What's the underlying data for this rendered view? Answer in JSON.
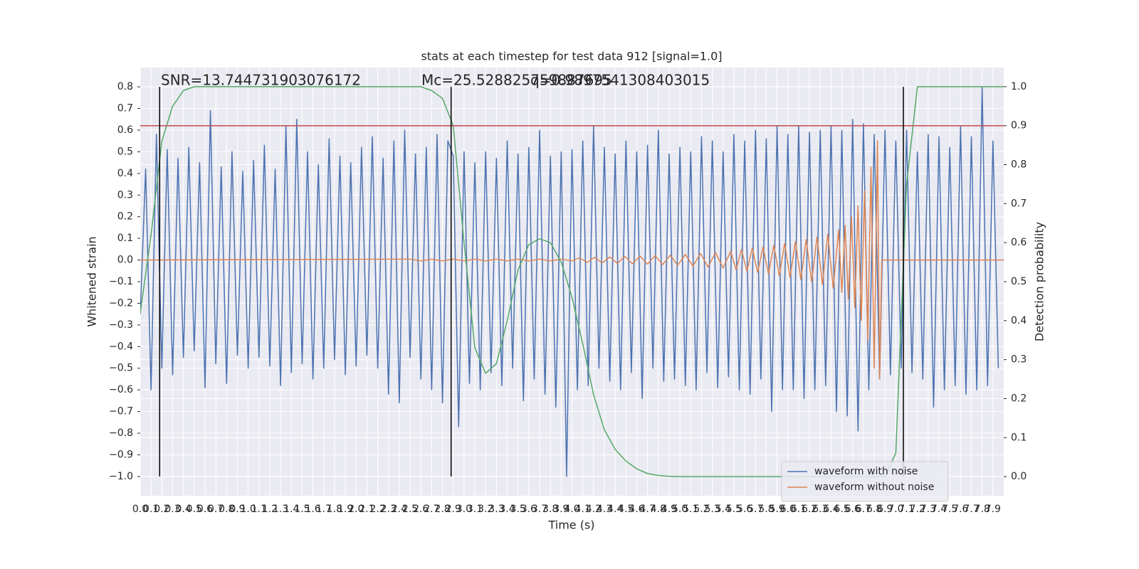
{
  "chart_data": {
    "type": "line",
    "title": "stats at each timestep for test data 912 [signal=1.0]",
    "xlabel": "Time (s)",
    "ylabel": "Whitened strain",
    "y2label": "Detection probability",
    "annotations": [
      "SNR=13.744731903076172",
      "Mc=25.528825759887695",
      "q=0.9897541308403015"
    ],
    "xlim": [
      0,
      8
    ],
    "ylim": [
      -1.089,
      0.889
    ],
    "y2lim": [
      -0.049,
      1.049
    ],
    "grid": true,
    "legend": "lower right",
    "xticks": [
      {
        "value": 0,
        "label": "0.0"
      },
      0.1,
      0.2,
      0.3,
      0.4,
      0.5,
      0.6,
      0.7,
      0.8,
      0.9,
      {
        "value": 1,
        "label": "1.0"
      },
      1.1,
      1.2,
      1.3,
      1.4,
      1.5,
      1.6,
      1.7,
      1.8,
      1.9,
      {
        "value": 2,
        "label": "2.0"
      },
      2.1,
      2.2,
      2.3,
      2.4,
      2.5,
      2.6,
      2.7,
      2.8,
      2.9,
      {
        "value": 3,
        "label": "3.0"
      },
      3.1,
      3.2,
      3.3,
      3.4,
      3.5,
      3.6,
      3.7,
      3.8,
      3.9,
      {
        "value": 4,
        "label": "4.0"
      },
      4.1,
      4.2,
      4.3,
      4.4,
      4.5,
      4.6,
      4.7,
      4.8,
      4.9,
      {
        "value": 5,
        "label": "5.0"
      },
      5.1,
      5.2,
      5.3,
      5.4,
      5.5,
      5.6,
      5.7,
      5.8,
      5.9,
      {
        "value": 6,
        "label": "6.0"
      },
      6.1,
      6.2,
      6.3,
      6.4,
      6.5,
      6.6,
      6.7,
      6.8,
      6.9,
      {
        "value": 7,
        "label": "7.0"
      },
      7.1,
      7.2,
      7.3,
      7.4,
      7.5,
      7.6,
      7.7,
      7.8,
      7.9
    ],
    "yticks": [
      0.8,
      0.7,
      0.6,
      0.5,
      0.4,
      0.3,
      0.2,
      0.1,
      {
        "value": 0,
        "label": "0.0"
      },
      {
        "value": -0.1,
        "label": "−0.1"
      },
      {
        "value": -0.2,
        "label": "−0.2"
      },
      {
        "value": -0.3,
        "label": "−0.3"
      },
      {
        "value": -0.4,
        "label": "−0.4"
      },
      {
        "value": -0.5,
        "label": "−0.5"
      },
      {
        "value": -0.6,
        "label": "−0.6"
      },
      {
        "value": -0.7,
        "label": "−0.7"
      },
      {
        "value": -0.8,
        "label": "−0.8"
      },
      {
        "value": -0.9,
        "label": "−0.9"
      },
      {
        "value": -1,
        "label": "−1.0"
      }
    ],
    "y2ticks": [
      {
        "value": 0,
        "label": "0.0"
      },
      0.1,
      0.2,
      0.3,
      0.4,
      0.5,
      0.6,
      0.7,
      0.8,
      0.9,
      {
        "value": 1,
        "label": "1.0"
      }
    ],
    "hline": {
      "value": 0.9,
      "axis": "y2",
      "color": "#c44e52"
    },
    "vlines": {
      "x": [
        0.18,
        2.88,
        7.07
      ],
      "ymin": -1,
      "ymax": 0.8,
      "color": "#000000"
    },
    "series": [
      {
        "name": "waveform with noise",
        "color": "#4c72b0",
        "x": [
          0,
          0.05,
          0.1,
          0.15,
          0.2,
          0.25,
          0.3,
          0.35,
          0.4,
          0.45,
          0.5,
          0.55,
          0.6,
          0.65,
          0.7,
          0.75,
          0.8,
          0.85,
          0.9,
          0.95,
          1,
          1.05,
          1.1,
          1.15,
          1.2,
          1.25,
          1.3,
          1.35,
          1.4,
          1.45,
          1.5,
          1.55,
          1.6,
          1.65,
          1.7,
          1.75,
          1.8,
          1.85,
          1.9,
          1.95,
          2,
          2.05,
          2.1,
          2.15,
          2.2,
          2.25,
          2.3,
          2.35,
          2.4,
          2.45,
          2.5,
          2.55,
          2.6,
          2.65,
          2.7,
          2.75,
          2.8,
          2.85,
          2.9,
          2.95,
          3,
          3.05,
          3.1,
          3.15,
          3.2,
          3.25,
          3.3,
          3.35,
          3.4,
          3.45,
          3.5,
          3.55,
          3.6,
          3.65,
          3.7,
          3.75,
          3.8,
          3.85,
          3.9,
          3.95,
          4,
          4.05,
          4.1,
          4.15,
          4.2,
          4.25,
          4.3,
          4.35,
          4.4,
          4.45,
          4.5,
          4.55,
          4.6,
          4.65,
          4.7,
          4.75,
          4.8,
          4.85,
          4.9,
          4.95,
          5,
          5.05,
          5.1,
          5.15,
          5.2,
          5.25,
          5.3,
          5.35,
          5.4,
          5.45,
          5.5,
          5.55,
          5.6,
          5.65,
          5.7,
          5.75,
          5.8,
          5.85,
          5.9,
          5.95,
          6,
          6.05,
          6.1,
          6.15,
          6.2,
          6.25,
          6.3,
          6.35,
          6.4,
          6.45,
          6.5,
          6.55,
          6.6,
          6.65,
          6.7,
          6.75,
          6.8,
          6.85,
          6.9,
          6.95,
          7,
          7.05,
          7.1,
          7.15,
          7.2,
          7.25,
          7.3,
          7.35,
          7.4,
          7.45,
          7.5,
          7.55,
          7.6,
          7.65,
          7.7,
          7.75,
          7.8,
          7.85,
          7.9,
          7.95
        ],
        "values": [
          -0.25,
          0.42,
          -0.6,
          0.58,
          -0.5,
          0.51,
          -0.53,
          0.47,
          -0.45,
          0.52,
          -0.42,
          0.45,
          -0.59,
          0.69,
          -0.48,
          0.43,
          -0.57,
          0.5,
          -0.44,
          0.41,
          -0.5,
          0.46,
          -0.45,
          0.53,
          -0.49,
          0.42,
          -0.58,
          0.62,
          -0.52,
          0.65,
          -0.48,
          0.5,
          -0.55,
          0.44,
          -0.5,
          0.56,
          -0.46,
          0.48,
          -0.53,
          0.45,
          -0.49,
          0.52,
          -0.44,
          0.57,
          -0.5,
          0.47,
          -0.62,
          0.55,
          -0.66,
          0.6,
          -0.45,
          0.49,
          -0.55,
          0.52,
          -0.6,
          0.58,
          -0.66,
          0.55,
          0.48,
          -0.77,
          0.5,
          -0.57,
          0.45,
          -0.6,
          0.5,
          -0.52,
          0.47,
          -0.58,
          0.55,
          -0.5,
          0.49,
          -0.65,
          0.52,
          -0.55,
          0.6,
          -0.62,
          0.48,
          -0.68,
          0.5,
          -1.0,
          0.51,
          -0.6,
          0.55,
          -0.58,
          0.62,
          -0.5,
          0.52,
          -0.56,
          0.49,
          -0.6,
          0.55,
          -0.52,
          0.5,
          -0.64,
          0.53,
          -0.5,
          0.6,
          -0.56,
          0.49,
          -0.55,
          0.52,
          -0.58,
          0.5,
          -0.6,
          0.57,
          -0.52,
          0.55,
          -0.59,
          0.5,
          -0.54,
          0.58,
          -0.6,
          0.55,
          -0.62,
          0.6,
          -0.55,
          0.56,
          -0.7,
          0.62,
          -0.6,
          0.58,
          -0.6,
          0.62,
          -0.64,
          0.59,
          -0.6,
          0.6,
          -0.58,
          0.62,
          -0.7,
          0.6,
          -0.72,
          0.65,
          -0.79,
          0.63,
          -0.6,
          0.58,
          -0.55,
          0.6,
          -0.53,
          0.55,
          -0.5,
          0.6,
          -0.52,
          0.5,
          -0.55,
          0.58,
          -0.68,
          0.57,
          -0.6,
          0.52,
          -0.58,
          0.62,
          -0.62,
          0.57,
          -0.6,
          0.8,
          -0.58,
          0.55,
          -0.5
        ]
      },
      {
        "name": "waveform without noise",
        "color": "#dd8452",
        "x": [
          0,
          2.5,
          2.6,
          2.7,
          2.8,
          2.9,
          3.0,
          3.1,
          3.2,
          3.3,
          3.4,
          3.5,
          3.6,
          3.7,
          3.8,
          3.9,
          4.0,
          4.07,
          4.14,
          4.21,
          4.28,
          4.35,
          4.42,
          4.49,
          4.56,
          4.63,
          4.7,
          4.77,
          4.84,
          4.91,
          4.98,
          5.05,
          5.12,
          5.19,
          5.26,
          5.33,
          5.4,
          5.47,
          5.52,
          5.57,
          5.62,
          5.67,
          5.72,
          5.77,
          5.82,
          5.87,
          5.92,
          5.97,
          6.02,
          6.07,
          6.12,
          6.17,
          6.22,
          6.27,
          6.32,
          6.37,
          6.42,
          6.47,
          6.5,
          6.53,
          6.56,
          6.59,
          6.62,
          6.65,
          6.68,
          6.71,
          6.74,
          6.77,
          6.8,
          6.83,
          6.85,
          6.87,
          8.0
        ],
        "values": [
          0,
          0.004,
          -0.004,
          0.004,
          -0.004,
          0.004,
          -0.004,
          0.004,
          -0.004,
          0.004,
          -0.004,
          0.004,
          -0.004,
          0.004,
          -0.004,
          0.004,
          -0.004,
          0.01,
          -0.011,
          0.012,
          -0.013,
          0.014,
          -0.015,
          0.016,
          -0.017,
          0.018,
          -0.019,
          0.02,
          -0.021,
          0.022,
          -0.024,
          0.026,
          -0.028,
          0.03,
          -0.032,
          0.034,
          -0.037,
          0.04,
          -0.045,
          0.048,
          -0.051,
          0.054,
          -0.057,
          0.06,
          -0.064,
          0.068,
          -0.072,
          0.076,
          -0.08,
          0.085,
          -0.09,
          0.095,
          -0.1,
          0.106,
          -0.112,
          0.12,
          -0.13,
          0.14,
          -0.15,
          0.16,
          -0.18,
          0.2,
          -0.22,
          0.25,
          -0.28,
          0.32,
          -0.37,
          0.43,
          -0.5,
          0.55,
          -0.55,
          0,
          0
        ]
      },
      {
        "color": "#55a868",
        "axis": "y2",
        "x": [
          0,
          0.1,
          0.2,
          0.3,
          0.4,
          0.5,
          0.6,
          0.7,
          0.8,
          0.9,
          1,
          1.1,
          1.2,
          1.3,
          1.4,
          1.5,
          1.6,
          1.7,
          1.8,
          1.9,
          2,
          2.1,
          2.2,
          2.3,
          2.4,
          2.5,
          2.6,
          2.7,
          2.8,
          2.9,
          3,
          3.1,
          3.2,
          3.3,
          3.4,
          3.5,
          3.6,
          3.7,
          3.8,
          3.9,
          4,
          4.1,
          4.2,
          4.3,
          4.4,
          4.5,
          4.6,
          4.7,
          4.8,
          4.9,
          5,
          5.1,
          5.2,
          5.3,
          5.4,
          5.5,
          5.6,
          5.7,
          5.8,
          5.9,
          6,
          6.1,
          6.2,
          6.3,
          6.4,
          6.5,
          6.6,
          6.7,
          6.8,
          6.9,
          7,
          7.1,
          7.2,
          7.3,
          7.4,
          7.5,
          7.6,
          7.7,
          7.8,
          7.9,
          8
        ],
        "values": [
          0.42,
          0.62,
          0.86,
          0.95,
          0.99,
          1,
          1,
          1,
          1,
          1,
          1,
          1,
          1,
          1,
          1,
          1,
          1,
          1,
          1,
          1,
          1,
          1,
          1,
          1,
          1,
          1,
          1,
          0.99,
          0.97,
          0.9,
          0.6,
          0.33,
          0.265,
          0.29,
          0.4,
          0.53,
          0.595,
          0.61,
          0.6,
          0.55,
          0.46,
          0.34,
          0.21,
          0.12,
          0.07,
          0.04,
          0.02,
          0.008,
          0.003,
          0.001,
          0,
          0,
          0,
          0,
          0,
          0,
          0,
          0,
          0,
          0,
          0,
          0,
          0,
          0,
          0,
          0,
          0,
          0,
          0,
          0,
          0.06,
          0.75,
          1,
          1,
          1,
          1,
          1,
          1,
          1,
          1,
          1
        ]
      }
    ]
  }
}
